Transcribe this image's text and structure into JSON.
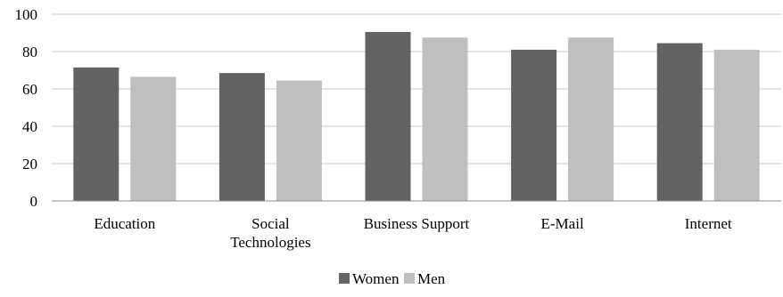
{
  "chart_data": {
    "type": "bar",
    "title": "",
    "xlabel": "",
    "ylabel": "",
    "categories": [
      [
        "Education"
      ],
      [
        "Social",
        "Technologies"
      ],
      [
        "Business Support"
      ],
      [
        "E-Mail"
      ],
      [
        "Internet"
      ]
    ],
    "series": [
      {
        "name": "Women",
        "color": "#636363",
        "values": [
          71.5,
          68.5,
          90.5,
          81,
          84.5
        ]
      },
      {
        "name": "Men",
        "color": "#bfbfbf",
        "values": [
          66.5,
          64.5,
          87.5,
          87.5,
          81
        ]
      }
    ],
    "ylim": [
      0,
      100
    ],
    "yticks": [
      0,
      20,
      40,
      60,
      80,
      100
    ],
    "grid": true,
    "legend_position": "bottom"
  }
}
